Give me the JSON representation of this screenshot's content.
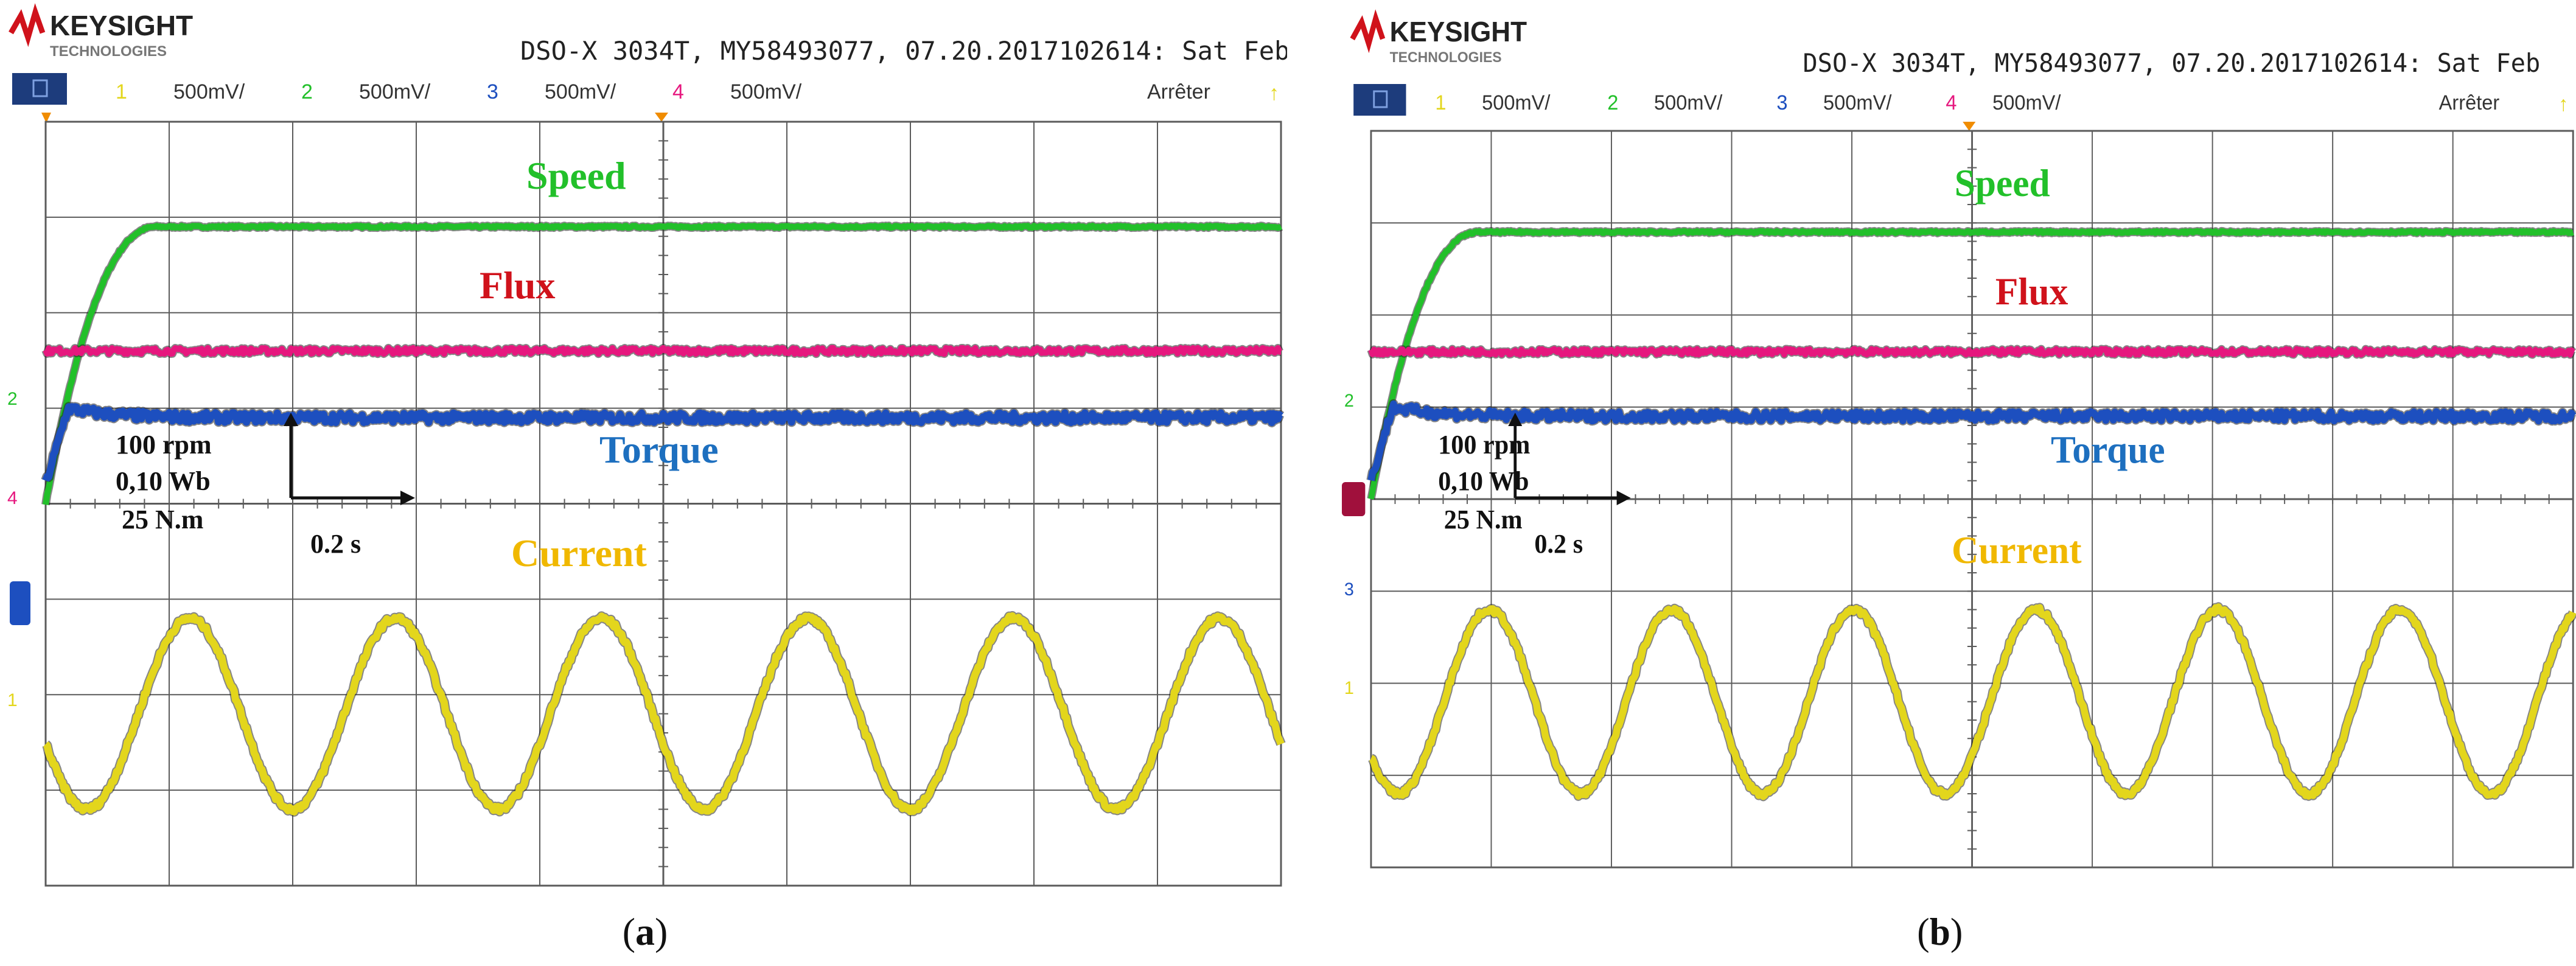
{
  "colors": {
    "speed": "#22c02a",
    "flux": "#e6177e",
    "torque": "#1d4fbf",
    "current": "#e3d61c",
    "grid": "#5b5b5b",
    "scope_bg": "#ffffff"
  },
  "scope": {
    "brand": "KEYSIGHT",
    "brand_sub": "TECHNOLOGIES",
    "header": "DSO-X 3034T, MY58493077, 07.20.2017102614: Sat Feb",
    "channels": [
      {
        "num": "1",
        "scale": "500mV/",
        "color": "#e3d61c"
      },
      {
        "num": "2",
        "scale": "500mV/",
        "color": "#22c02a"
      },
      {
        "num": "3",
        "scale": "500mV/",
        "color": "#1d4fbf"
      },
      {
        "num": "4",
        "scale": "500mV/",
        "color": "#e6177e"
      }
    ],
    "status": "Arrêter"
  },
  "annotations": {
    "scale_speed": "100 rpm",
    "scale_flux": "0,10 Wb",
    "scale_torque": "25 N.m",
    "time_scale": "0.2 s",
    "speed": "Speed",
    "flux": "Flux",
    "torque": "Torque",
    "current": "Current"
  },
  "chart_data": [
    {
      "type": "line",
      "label": "(a)",
      "x_divisions": 10,
      "y_divisions": 8,
      "time_per_div": "0.2 s",
      "grid": true,
      "series": [
        {
          "name": "Speed",
          "color": "#22c02a",
          "rise_end_div": 0.9,
          "steady_div": 6.9,
          "start_div": 4.0
        },
        {
          "name": "Flux",
          "color": "#e6177e",
          "steady_div": 5.6
        },
        {
          "name": "Torque",
          "color": "#1d4fbf",
          "peak_div": 5.0,
          "steady_div": 4.9,
          "start_div": 4.2
        },
        {
          "name": "Current",
          "color": "#e3d61c",
          "center_div": 1.8,
          "amplitude_div": 1.0,
          "cycles": 6,
          "start_phase": 0.55
        }
      ]
    },
    {
      "type": "line",
      "label": "(b)",
      "x_divisions": 10,
      "y_divisions": 8,
      "time_per_div": "0.2 s",
      "grid": true,
      "series": [
        {
          "name": "Speed",
          "color": "#22c02a",
          "rise_end_div": 0.9,
          "steady_div": 6.9,
          "start_div": 4.0
        },
        {
          "name": "Flux",
          "color": "#e6177e",
          "steady_div": 5.6
        },
        {
          "name": "Torque",
          "color": "#1d4fbf",
          "peak_div": 5.0,
          "steady_div": 4.9,
          "start_div": 4.2
        },
        {
          "name": "Current",
          "color": "#e3d61c",
          "center_div": 1.8,
          "amplitude_div": 1.0,
          "cycles": 6.6,
          "start_phase": 0.6
        }
      ]
    }
  ]
}
